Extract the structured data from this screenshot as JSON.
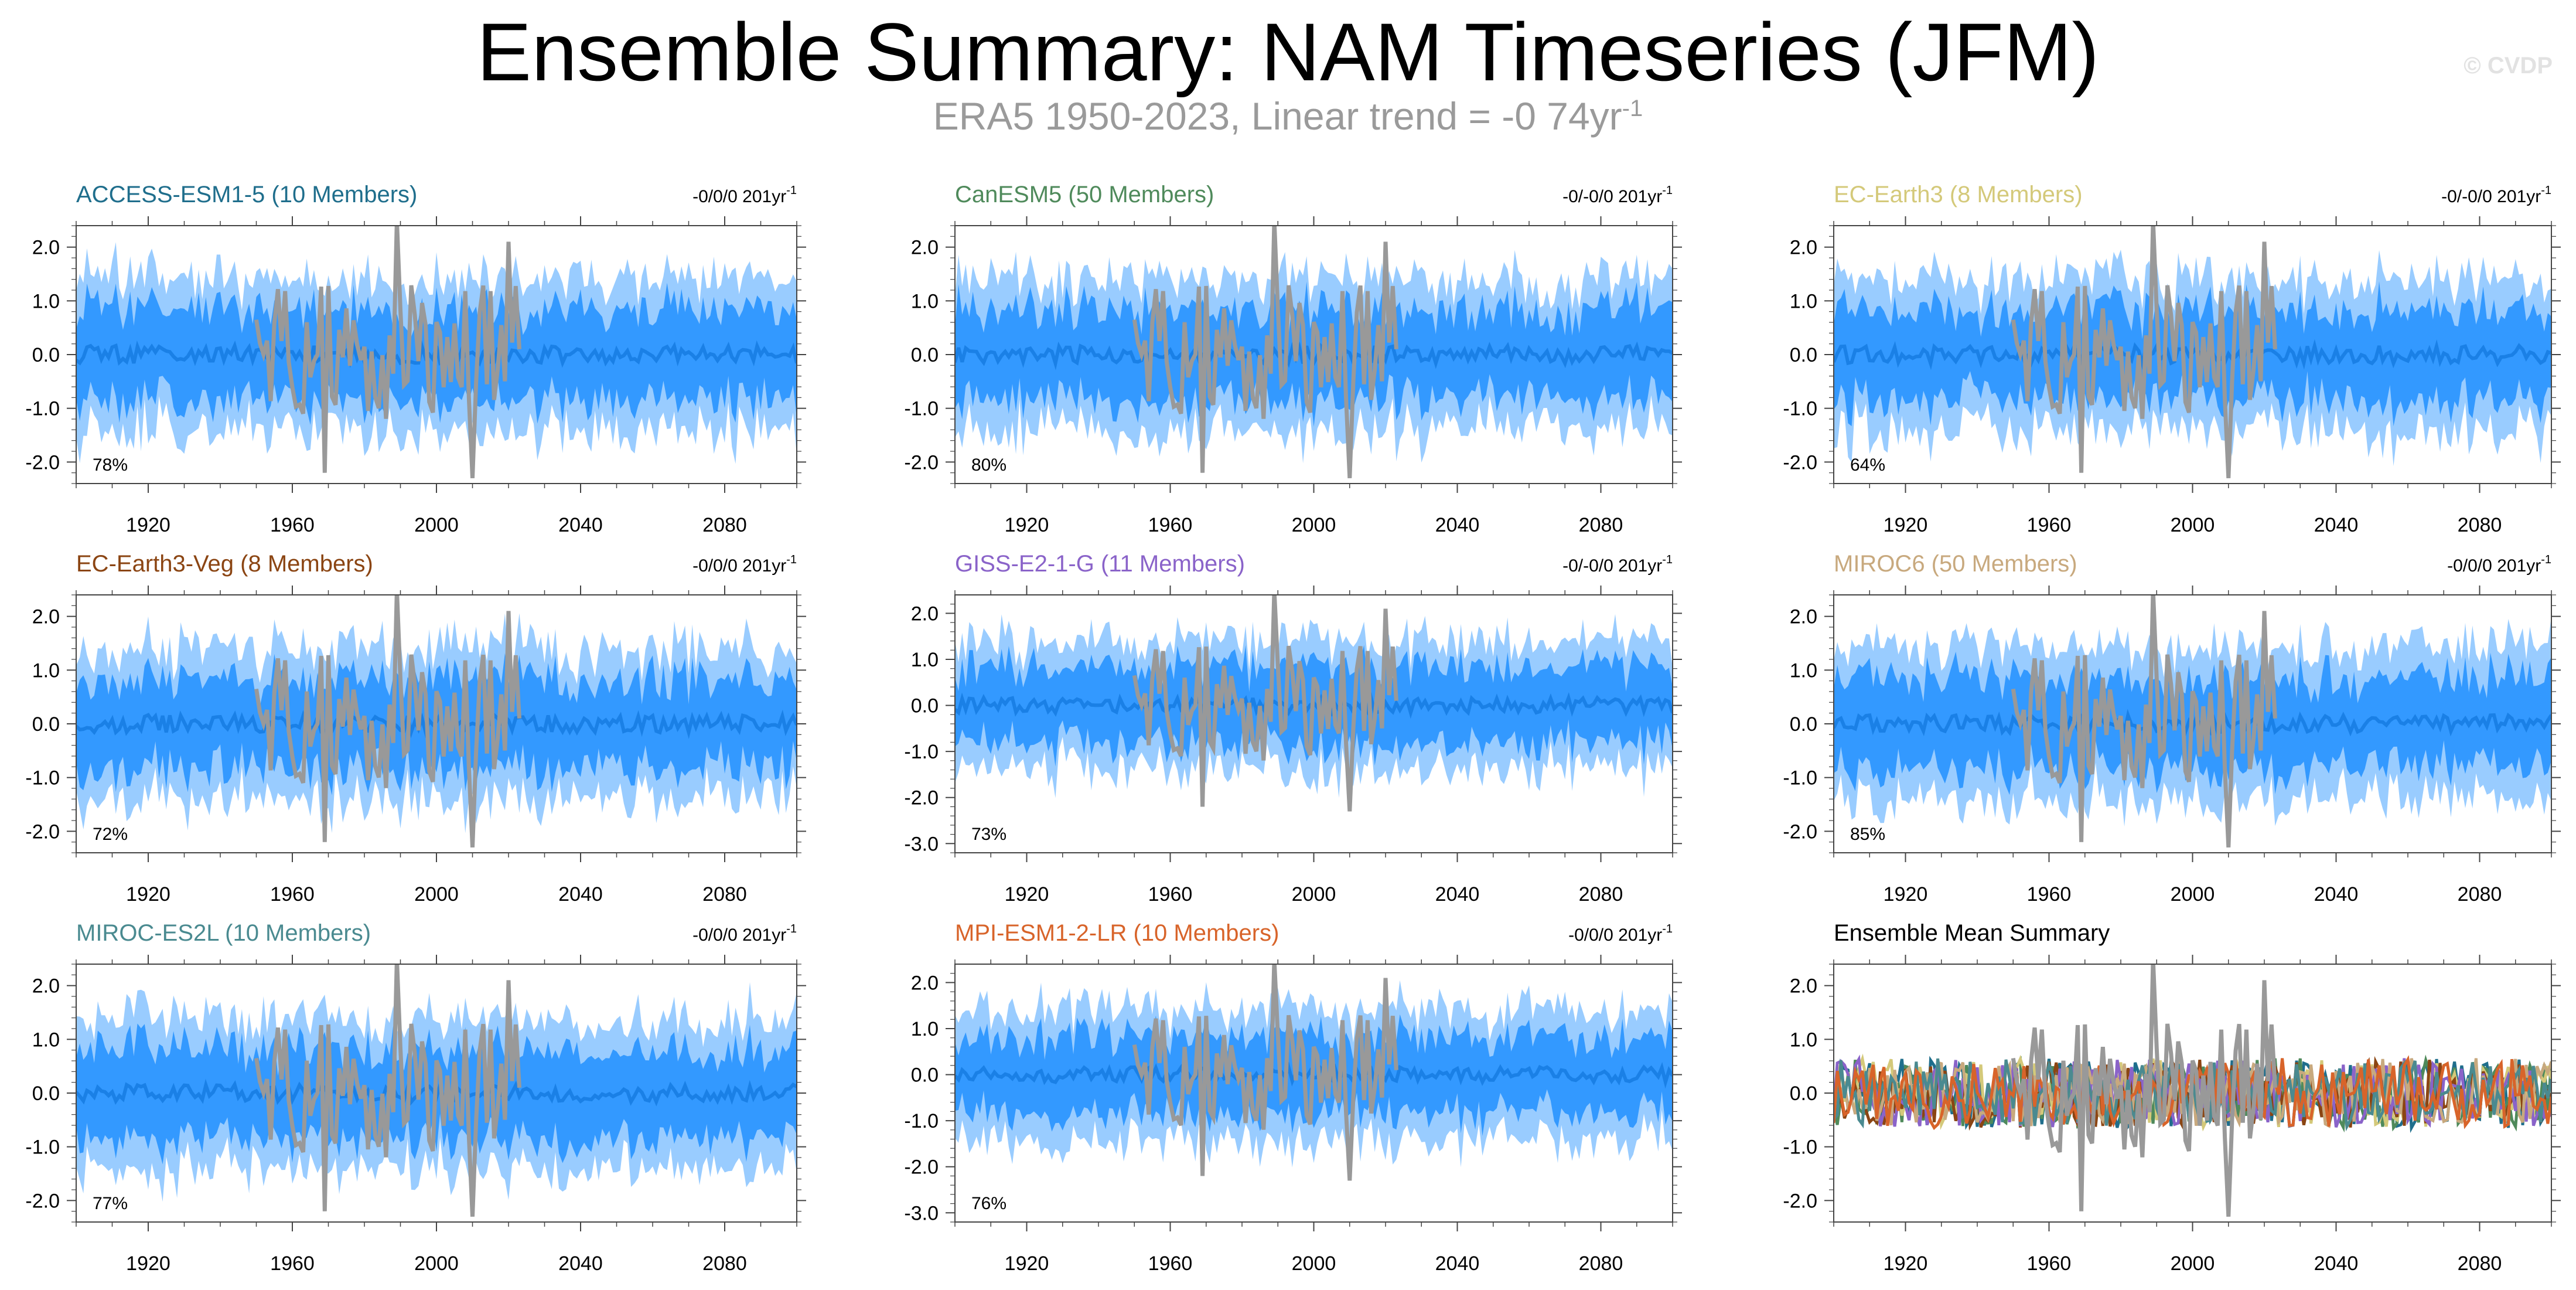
{
  "title": "Ensemble Summary: NAM Timeseries (JFM)",
  "subtitle": {
    "text": "ERA5 1950-2023, Linear trend = -0 74yr",
    "superscript": "-1"
  },
  "watermark": "© CVDP",
  "colors": {
    "spread_outer": "#99ccff",
    "spread_inner": "#3399ff",
    "ensemble_mean_line": "#1a80e6",
    "observations": "#999999",
    "axis": "#444444"
  },
  "chart_data": [
    {
      "type": "area",
      "title": "ACCESS-ESM1-5 (10 Members)",
      "title_color": "#1f6e8c",
      "trend": "-0/0/0 201yr",
      "trend_sup": "-1",
      "percent": "78%",
      "x_ticks": [
        1920,
        1960,
        2000,
        2040,
        2080
      ],
      "y_ticks": [
        2.0,
        1.0,
        0.0,
        -1.0,
        -2.0
      ],
      "y_tick_labels": [
        "2.0",
        "1.0",
        "0.0",
        "-1.0",
        "-2.0"
      ],
      "xlim": [
        1900,
        2100
      ],
      "ylim": [
        -2.4,
        2.4
      ],
      "seed": 11,
      "obs_years": [
        1950,
        2023
      ]
    },
    {
      "type": "area",
      "title": "CanESM5 (50 Members)",
      "title_color": "#4f8a5b",
      "trend": "-0/-0/0 201yr",
      "trend_sup": "-1",
      "percent": "80%",
      "x_ticks": [
        1920,
        1960,
        2000,
        2040,
        2080
      ],
      "y_ticks": [
        2.0,
        1.0,
        0.0,
        -1.0,
        -2.0
      ],
      "y_tick_labels": [
        "2.0",
        "1.0",
        "0.0",
        "-1.0",
        "-2.0"
      ],
      "xlim": [
        1900,
        2100
      ],
      "ylim": [
        -2.4,
        2.4
      ],
      "seed": 23,
      "obs_years": [
        1950,
        2023
      ]
    },
    {
      "type": "area",
      "title": "EC-Earth3 (8 Members)",
      "title_color": "#d4c97a",
      "trend": "-0/-0/0 201yr",
      "trend_sup": "-1",
      "percent": "64%",
      "x_ticks": [
        1920,
        1960,
        2000,
        2040,
        2080
      ],
      "y_ticks": [
        2.0,
        1.0,
        0.0,
        -1.0,
        -2.0
      ],
      "y_tick_labels": [
        "2.0",
        "1.0",
        "0.0",
        "-1.0",
        "-2.0"
      ],
      "xlim": [
        1900,
        2100
      ],
      "ylim": [
        -2.4,
        2.4
      ],
      "seed": 37,
      "obs_years": [
        1950,
        2023
      ]
    },
    {
      "type": "area",
      "title": "EC-Earth3-Veg (8 Members)",
      "title_color": "#8b4513",
      "trend": "-0/0/0 201yr",
      "trend_sup": "-1",
      "percent": "72%",
      "x_ticks": [
        1920,
        1960,
        2000,
        2040,
        2080
      ],
      "y_ticks": [
        2.0,
        1.0,
        0.0,
        -1.0,
        -2.0
      ],
      "y_tick_labels": [
        "2.0",
        "1.0",
        "0.0",
        "-1.0",
        "-2.0"
      ],
      "xlim": [
        1900,
        2100
      ],
      "ylim": [
        -2.4,
        2.4
      ],
      "seed": 41,
      "obs_years": [
        1950,
        2023
      ]
    },
    {
      "type": "area",
      "title": "GISS-E2-1-G (11 Members)",
      "title_color": "#8a63c9",
      "trend": "-0/-0/0 201yr",
      "trend_sup": "-1",
      "percent": "73%",
      "x_ticks": [
        1920,
        1960,
        2000,
        2040,
        2080
      ],
      "y_ticks": [
        2.0,
        1.0,
        0.0,
        -1.0,
        -2.0,
        -3.0
      ],
      "y_tick_labels": [
        "2.0",
        "1.0",
        "0.0",
        "-1.0",
        "-2.0",
        "-3.0"
      ],
      "xlim": [
        1900,
        2100
      ],
      "ylim": [
        -3.2,
        2.4
      ],
      "seed": 53,
      "obs_years": [
        1950,
        2023
      ]
    },
    {
      "type": "area",
      "title": "MIROC6 (50 Members)",
      "title_color": "#c8a97e",
      "trend": "-0/0/0 201yr",
      "trend_sup": "-1",
      "percent": "85%",
      "x_ticks": [
        1920,
        1960,
        2000,
        2040,
        2080
      ],
      "y_ticks": [
        2.0,
        1.0,
        0.0,
        -1.0,
        -2.0
      ],
      "y_tick_labels": [
        "2.0",
        "1.0",
        "0.0",
        "-1.0",
        "-2.0"
      ],
      "xlim": [
        1900,
        2100
      ],
      "ylim": [
        -2.4,
        2.4
      ],
      "seed": 67,
      "obs_years": [
        1950,
        2023
      ]
    },
    {
      "type": "area",
      "title": "MIROC-ES2L (10 Members)",
      "title_color": "#4a8a90",
      "trend": "-0/0/0 201yr",
      "trend_sup": "-1",
      "percent": "77%",
      "x_ticks": [
        1920,
        1960,
        2000,
        2040,
        2080
      ],
      "y_ticks": [
        2.0,
        1.0,
        0.0,
        -1.0,
        -2.0
      ],
      "y_tick_labels": [
        "2.0",
        "1.0",
        "0.0",
        "-1.0",
        "-2.0"
      ],
      "xlim": [
        1900,
        2100
      ],
      "ylim": [
        -2.4,
        2.4
      ],
      "seed": 71,
      "obs_years": [
        1950,
        2023
      ]
    },
    {
      "type": "area",
      "title": "MPI-ESM1-2-LR (10 Members)",
      "title_color": "#d8642a",
      "trend": "-0/0/0 201yr",
      "trend_sup": "-1",
      "percent": "76%",
      "x_ticks": [
        1920,
        1960,
        2000,
        2040,
        2080
      ],
      "y_ticks": [
        2.0,
        1.0,
        0.0,
        -1.0,
        -2.0,
        -3.0
      ],
      "y_tick_labels": [
        "2.0",
        "1.0",
        "0.0",
        "-1.0",
        "-2.0",
        "-3.0"
      ],
      "xlim": [
        1900,
        2100
      ],
      "ylim": [
        -3.2,
        2.4
      ],
      "seed": 83,
      "obs_years": [
        1950,
        2023
      ]
    },
    {
      "type": "line",
      "title": "Ensemble Mean Summary",
      "title_color": "#000000",
      "trend": "",
      "trend_sup": "",
      "percent": "",
      "x_ticks": [
        1920,
        1960,
        2000,
        2040,
        2080
      ],
      "y_ticks": [
        2.0,
        1.0,
        0.0,
        -1.0,
        -2.0
      ],
      "y_tick_labels": [
        "2.0",
        "1.0",
        "0.0",
        "-1.0",
        "-2.0"
      ],
      "xlim": [
        1900,
        2100
      ],
      "ylim": [
        -2.4,
        2.4
      ],
      "seed": 97,
      "obs_years": [
        1950,
        2023
      ],
      "series_colors": [
        "#1f6e8c",
        "#4f8a5b",
        "#d4c97a",
        "#8b4513",
        "#8a63c9",
        "#c8a97e",
        "#4a8a90",
        "#d8642a"
      ]
    }
  ]
}
